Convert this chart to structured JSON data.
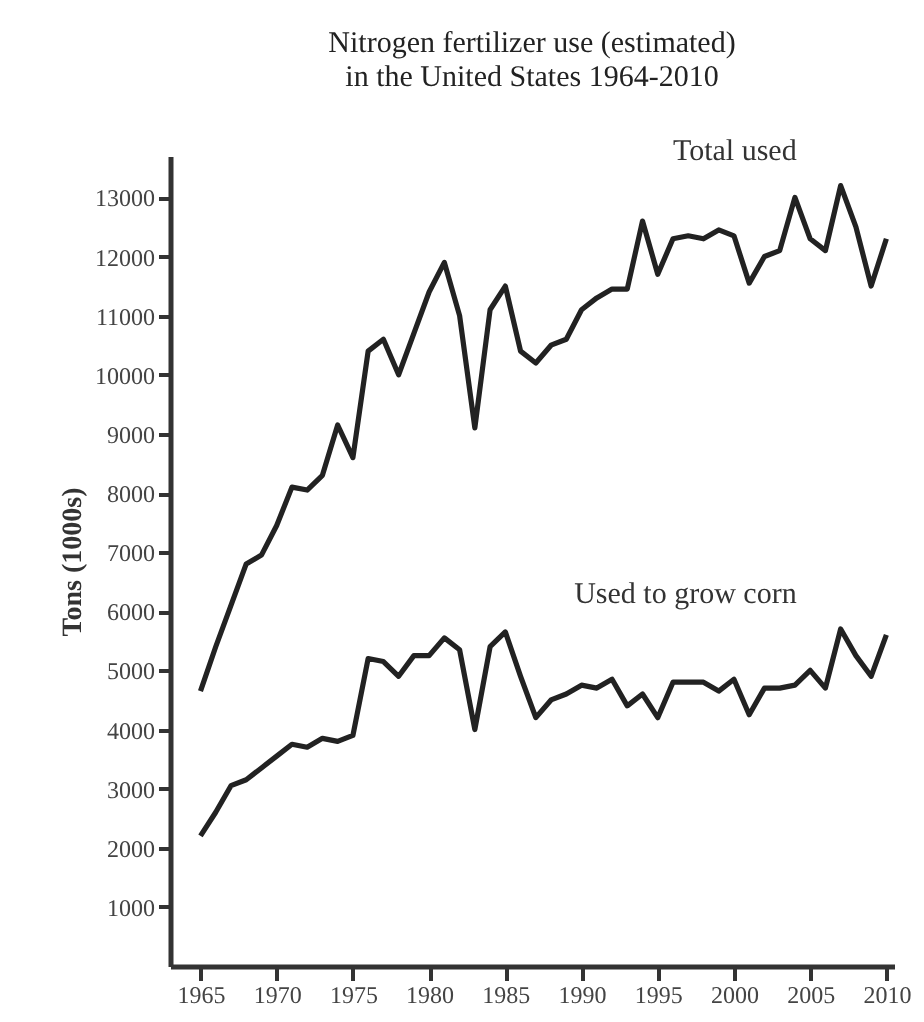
{
  "chart_data": {
    "type": "line",
    "title": [
      "Nitrogen fertilizer use (estimated)",
      "in the United States 1964-2010"
    ],
    "ylabel": "Tons (1000s)",
    "x": [
      1965,
      1966,
      1967,
      1968,
      1969,
      1970,
      1971,
      1972,
      1973,
      1974,
      1975,
      1976,
      1977,
      1978,
      1979,
      1980,
      1981,
      1982,
      1983,
      1984,
      1985,
      1986,
      1987,
      1988,
      1989,
      1990,
      1991,
      1992,
      1993,
      1994,
      1995,
      1996,
      1997,
      1998,
      1999,
      2000,
      2001,
      2002,
      2003,
      2004,
      2005,
      2006,
      2007,
      2008,
      2009,
      2010
    ],
    "series": [
      {
        "name": "Total used",
        "color": "#222222",
        "values": [
          4650,
          5400,
          6100,
          6800,
          6950,
          7450,
          8100,
          8050,
          8300,
          9150,
          8600,
          10400,
          10600,
          10000,
          10700,
          11400,
          11900,
          11000,
          9100,
          11100,
          11500,
          10400,
          10200,
          10500,
          10600,
          11100,
          11300,
          11450,
          11450,
          12600,
          11700,
          12300,
          12350,
          12300,
          12450,
          12350,
          11550,
          12000,
          12100,
          13000,
          12300,
          12100,
          13200,
          12500,
          11500,
          12300
        ]
      },
      {
        "name": "Used to grow corn",
        "color": "#222222",
        "values": [
          2200,
          2600,
          3050,
          3150,
          3350,
          3550,
          3750,
          3700,
          3850,
          3800,
          3900,
          5200,
          5150,
          4900,
          5250,
          5250,
          5550,
          5350,
          4000,
          5400,
          5650,
          4900,
          4200,
          4500,
          4600,
          4750,
          4700,
          4850,
          4400,
          4600,
          4200,
          4800,
          4800,
          4800,
          4650,
          4850,
          4250,
          4700,
          4700,
          4750,
          5000,
          4700,
          5700,
          5250,
          4900,
          5600
        ]
      }
    ],
    "xlim": [
      1963,
      2010.5
    ],
    "xticks": [
      1965,
      1970,
      1975,
      1980,
      1985,
      1990,
      1995,
      2000,
      2005,
      2010
    ],
    "ylim": [
      0,
      13700
    ],
    "yticks": [
      1000,
      2000,
      3000,
      4000,
      5000,
      6000,
      7000,
      8000,
      9000,
      10000,
      11000,
      12000,
      13000
    ],
    "grid": false,
    "legend": false,
    "line_style": "solid",
    "marker": "none"
  }
}
